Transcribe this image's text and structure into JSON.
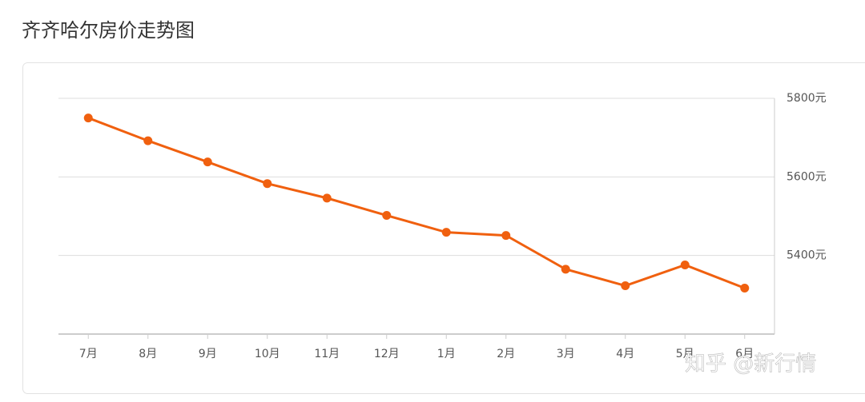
{
  "chart_data": {
    "type": "line",
    "title": "齐齐哈尔房价走势图",
    "watermark": "知乎 @新行情",
    "categories": [
      "7月",
      "8月",
      "9月",
      "10月",
      "11月",
      "12月",
      "1月",
      "2月",
      "3月",
      "4月",
      "5月",
      "6月"
    ],
    "series": [
      {
        "name": "房价",
        "color": "#f0600f",
        "values": [
          5750,
          5692,
          5638,
          5583,
          5546,
          5502,
          5459,
          5451,
          5365,
          5323,
          5376,
          5317
        ]
      }
    ],
    "ylim": [
      5200,
      5800
    ],
    "yticks": [
      {
        "value": 5400,
        "label": "5400元"
      },
      {
        "value": 5600,
        "label": "5600元"
      },
      {
        "value": 5800,
        "label": "5800元"
      }
    ],
    "grid": true
  }
}
